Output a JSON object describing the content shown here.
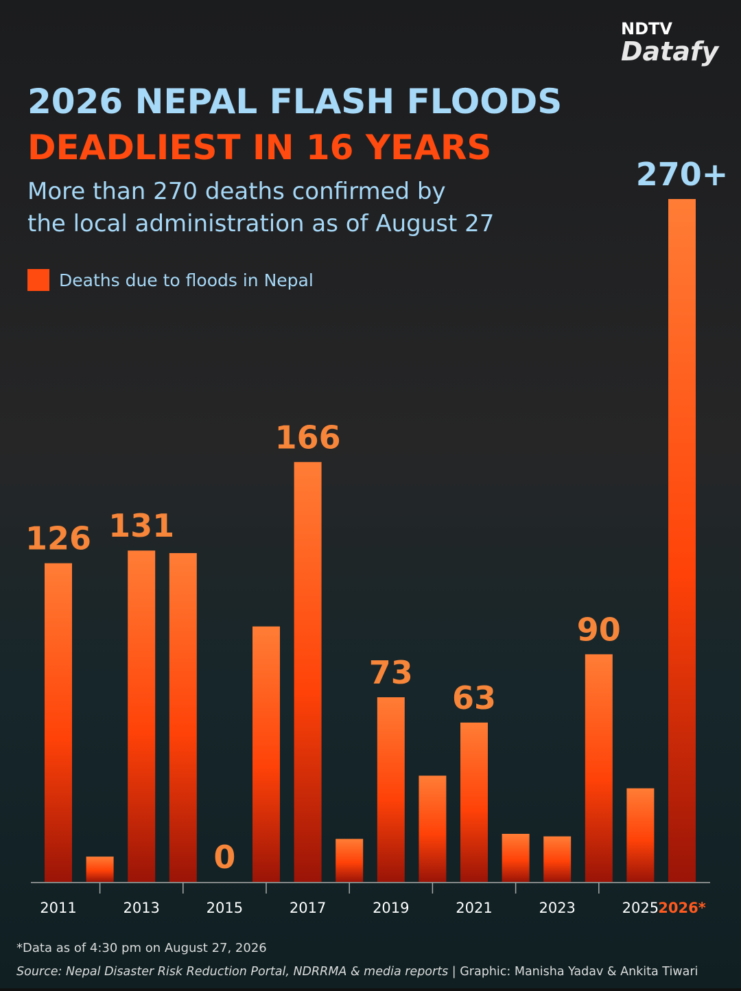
{
  "brand": {
    "top": "NDTV",
    "bottom": "Datafy"
  },
  "chart_data": {
    "type": "bar",
    "title": "2026 NEPAL FLASH FLOODS",
    "title_highlight": "DEADLIEST IN 16 YEARS",
    "subtitle": [
      "More than 270 deaths confirmed by",
      "the local administration as of August 27"
    ],
    "categories": [
      "2011",
      null,
      "2013",
      null,
      "2015",
      null,
      "2017",
      null,
      "2019",
      null,
      "2021",
      null,
      "2023",
      null,
      "2025",
      "2026*"
    ],
    "series": [
      {
        "name": "Deaths due to floods in Nepal",
        "color": "#ff4a10",
        "values": [
          126,
          10,
          131,
          130,
          0,
          101,
          166,
          17,
          73,
          42,
          63,
          19,
          18,
          90,
          37,
          270
        ],
        "value_labels": [
          "126",
          null,
          "131",
          null,
          "0",
          null,
          "166",
          null,
          "73",
          null,
          "63",
          null,
          null,
          "90",
          null,
          "270+"
        ]
      }
    ],
    "ylim": [
      0,
      270
    ],
    "value_label_color": "#f7853a",
    "highlight_color": "#a6d8f7",
    "last_category_color": "#ff5a1f",
    "footnote": "*Data as of 4:30 pm on August 27, 2026",
    "source": "Source: Nepal Disaster Risk Reduction Portal, NDRRMA & media reports",
    "credit": "| Graphic: Manisha Yadav & Ankita Tiwari"
  }
}
